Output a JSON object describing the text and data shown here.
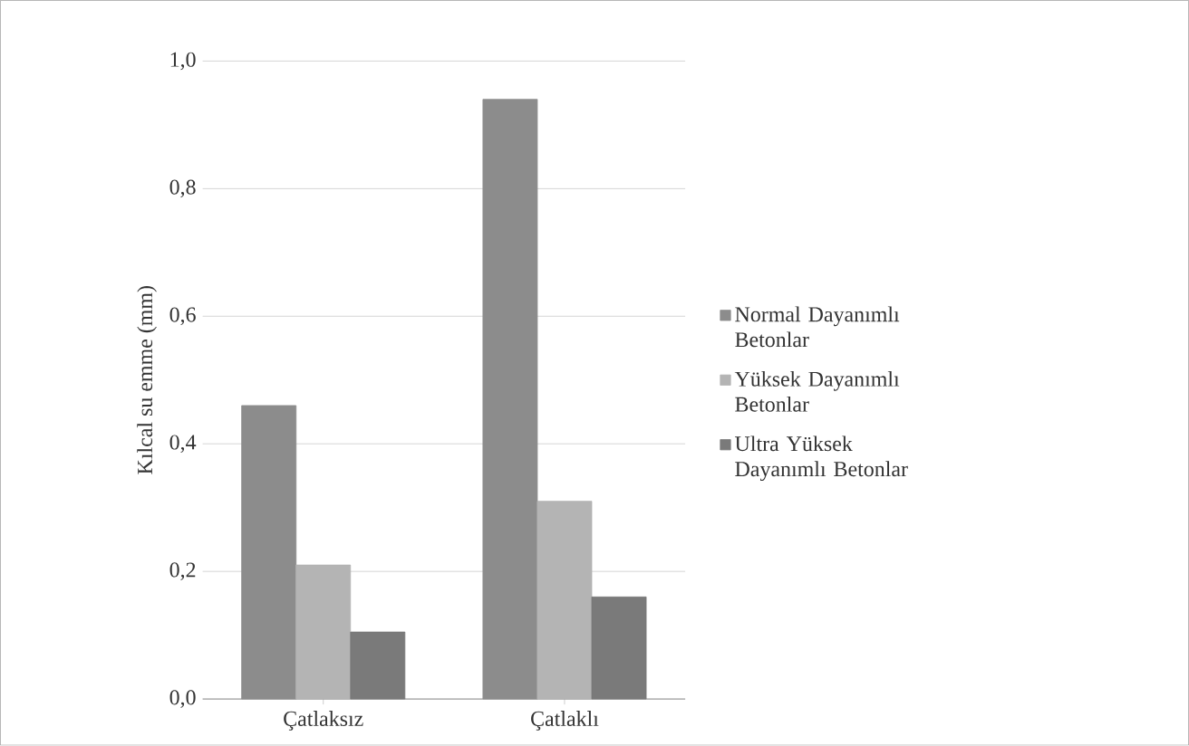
{
  "chart_data": {
    "type": "bar",
    "ylabel": "Kılcal su emme (mm)",
    "categories": [
      "Çatlaksız",
      "Çatlaklı"
    ],
    "series": [
      {
        "name": "Normal Dayanımlı Betonlar",
        "color": "#8c8c8c",
        "values": [
          0.46,
          0.94
        ]
      },
      {
        "name": "Yüksek Dayanımlı Betonlar",
        "color": "#b4b4b4",
        "values": [
          0.21,
          0.31
        ]
      },
      {
        "name": "Ultra Yüksek Dayanımlı Betonlar",
        "color": "#7a7a7a",
        "values": [
          0.105,
          0.16
        ]
      }
    ],
    "ylim": [
      0,
      1.0
    ],
    "yticks": [
      {
        "value": 0,
        "label": "0,0"
      },
      {
        "value": 0.2,
        "label": "0,2"
      },
      {
        "value": 0.4,
        "label": "0,4"
      },
      {
        "value": 0.6,
        "label": "0,6"
      },
      {
        "value": 0.8,
        "label": "0,8"
      },
      {
        "value": 1.0,
        "label": "1,0"
      }
    ],
    "grid": "y",
    "legend": "right"
  }
}
